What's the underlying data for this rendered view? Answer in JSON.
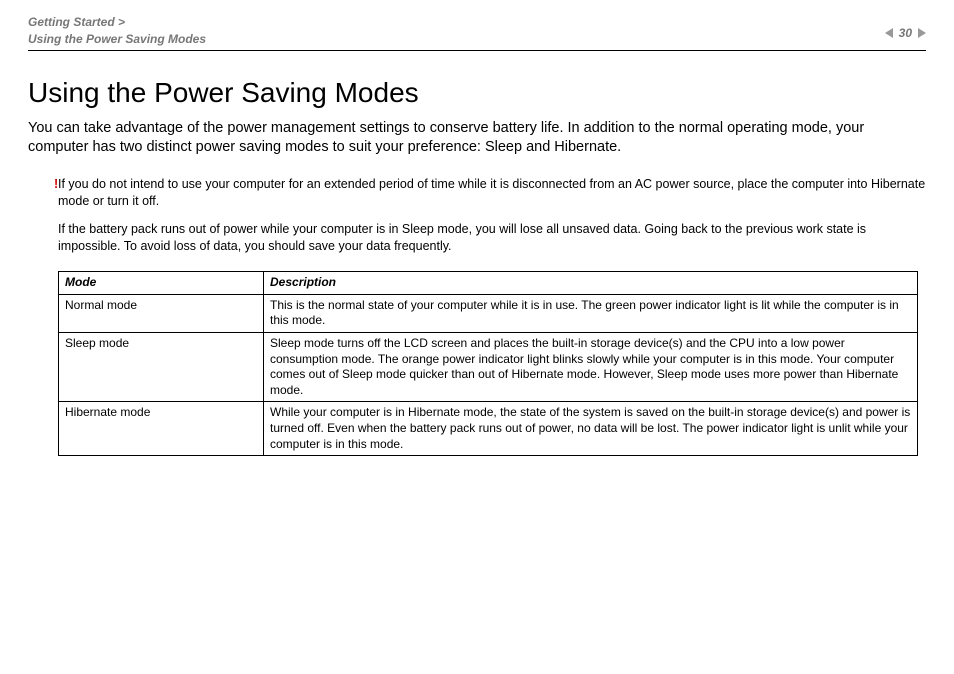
{
  "header": {
    "breadcrumb_line1": "Getting Started >",
    "breadcrumb_line2": "Using the Power Saving Modes",
    "page_number": "30"
  },
  "title": "Using the Power Saving Modes",
  "intro": "You can take advantage of the power management settings to conserve battery life. In addition to the normal operating mode, your computer has two distinct power saving modes to suit your preference: Sleep and Hibernate.",
  "warning_marker": "!",
  "note1": "If you do not intend to use your computer for an extended period of time while it is disconnected from an AC power source, place the computer into Hibernate mode or turn it off.",
  "note2": "If the battery pack runs out of power while your computer is in Sleep mode, you will lose all unsaved data. Going back to the previous work state is impossible. To avoid loss of data, you should save your data frequently.",
  "table": {
    "col1_header": "Mode",
    "col2_header": "Description",
    "rows": [
      {
        "mode": "Normal mode",
        "desc": "This is the normal state of your computer while it is in use. The green power indicator light is lit while the computer is in this mode."
      },
      {
        "mode": "Sleep mode",
        "desc": "Sleep mode turns off the LCD screen and places the built-in storage device(s) and the CPU into a low power consumption mode. The orange power indicator light blinks slowly while your computer is in this mode. Your computer comes out of Sleep mode quicker than out of Hibernate mode. However, Sleep mode uses more power than Hibernate mode."
      },
      {
        "mode": "Hibernate mode",
        "desc": "While your computer is in Hibernate mode, the state of the system is saved on the built-in storage device(s) and power is turned off. Even when the battery pack runs out of power, no data will be lost. The power indicator light is unlit while your computer is in this mode."
      }
    ]
  }
}
